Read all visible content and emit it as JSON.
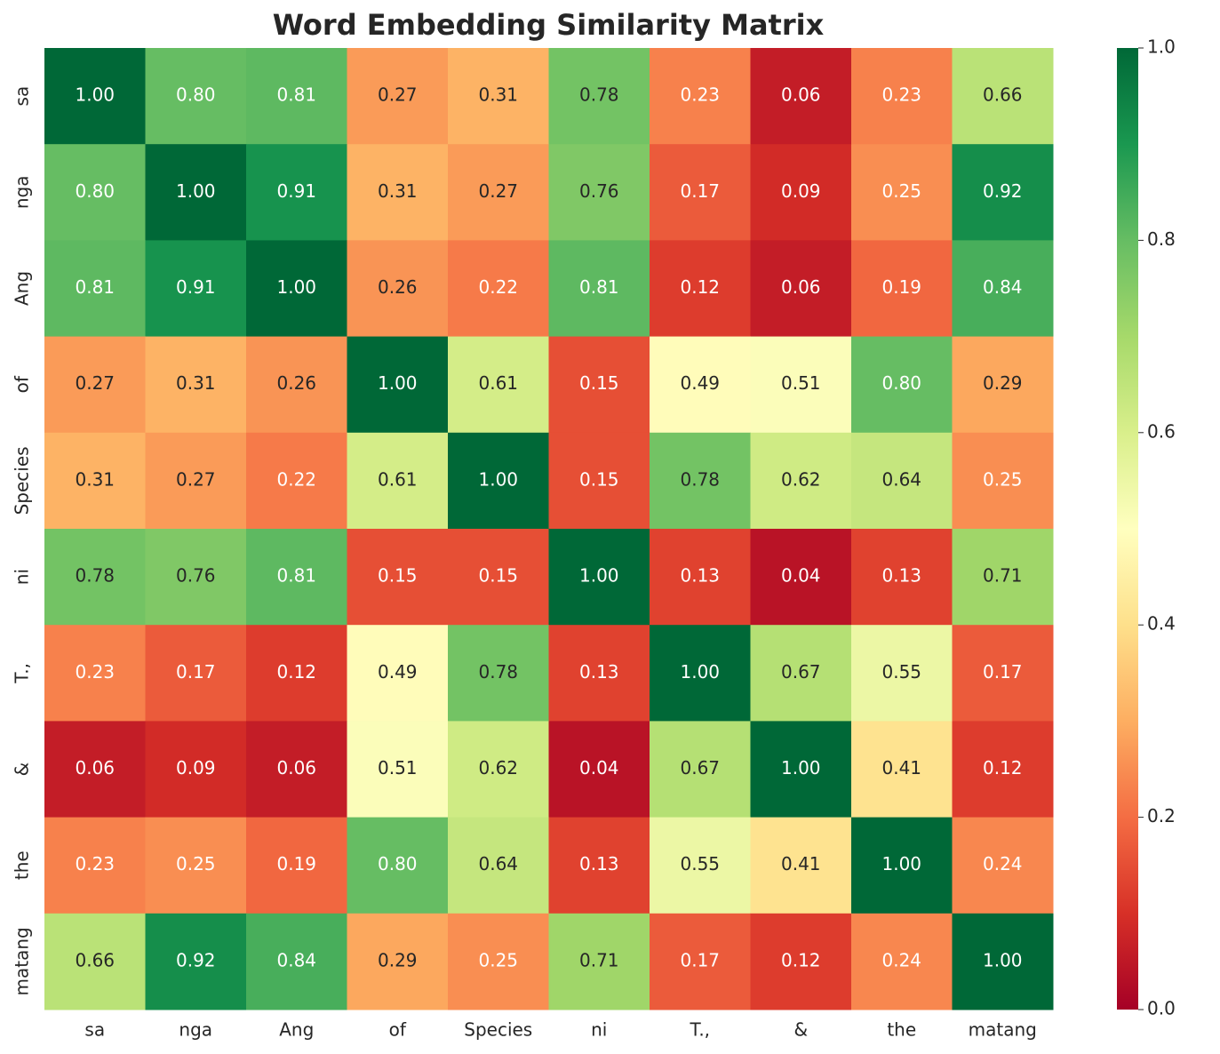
{
  "chart_data": {
    "type": "heatmap",
    "title": "Word Embedding Similarity Matrix",
    "x_categories": [
      "sa",
      "nga",
      "Ang",
      "of",
      "Species",
      "ni",
      "T.,",
      "&",
      "the",
      "matang"
    ],
    "y_categories": [
      "sa",
      "nga",
      "Ang",
      "of",
      "Species",
      "ni",
      "T.,",
      "&",
      "the",
      "matang"
    ],
    "values": [
      [
        1.0,
        0.8,
        0.81,
        0.27,
        0.31,
        0.78,
        0.23,
        0.06,
        0.23,
        0.66
      ],
      [
        0.8,
        1.0,
        0.91,
        0.31,
        0.27,
        0.76,
        0.17,
        0.09,
        0.25,
        0.92
      ],
      [
        0.81,
        0.91,
        1.0,
        0.26,
        0.22,
        0.81,
        0.12,
        0.06,
        0.19,
        0.84
      ],
      [
        0.27,
        0.31,
        0.26,
        1.0,
        0.61,
        0.15,
        0.49,
        0.51,
        0.8,
        0.29
      ],
      [
        0.31,
        0.27,
        0.22,
        0.61,
        1.0,
        0.15,
        0.78,
        0.62,
        0.64,
        0.25
      ],
      [
        0.78,
        0.76,
        0.81,
        0.15,
        0.15,
        1.0,
        0.13,
        0.04,
        0.13,
        0.71
      ],
      [
        0.23,
        0.17,
        0.12,
        0.49,
        0.78,
        0.13,
        1.0,
        0.67,
        0.55,
        0.17
      ],
      [
        0.06,
        0.09,
        0.06,
        0.51,
        0.62,
        0.04,
        0.67,
        1.0,
        0.41,
        0.12
      ],
      [
        0.23,
        0.25,
        0.19,
        0.8,
        0.64,
        0.13,
        0.55,
        0.41,
        1.0,
        0.24
      ],
      [
        0.66,
        0.92,
        0.84,
        0.29,
        0.25,
        0.71,
        0.17,
        0.12,
        0.24,
        1.0
      ]
    ],
    "value_labels": [
      [
        "1.00",
        "0.80",
        "0.81",
        "0.27",
        "0.31",
        "0.78",
        "0.23",
        "0.06",
        "0.23",
        "0.66"
      ],
      [
        "0.80",
        "1.00",
        "0.91",
        "0.31",
        "0.27",
        "0.76",
        "0.17",
        "0.09",
        "0.25",
        "0.92"
      ],
      [
        "0.81",
        "0.91",
        "1.00",
        "0.26",
        "0.22",
        "0.81",
        "0.12",
        "0.06",
        "0.19",
        "0.84"
      ],
      [
        "0.27",
        "0.31",
        "0.26",
        "1.00",
        "0.61",
        "0.15",
        "0.49",
        "0.51",
        "0.80",
        "0.29"
      ],
      [
        "0.31",
        "0.27",
        "0.22",
        "0.61",
        "1.00",
        "0.15",
        "0.78",
        "0.62",
        "0.64",
        "0.25"
      ],
      [
        "0.78",
        "0.76",
        "0.81",
        "0.15",
        "0.15",
        "1.00",
        "0.13",
        "0.04",
        "0.13",
        "0.71"
      ],
      [
        "0.23",
        "0.17",
        "0.12",
        "0.49",
        "0.78",
        "0.13",
        "1.00",
        "0.67",
        "0.55",
        "0.17"
      ],
      [
        "0.06",
        "0.09",
        "0.06",
        "0.51",
        "0.62",
        "0.04",
        "0.67",
        "1.00",
        "0.41",
        "0.12"
      ],
      [
        "0.23",
        "0.25",
        "0.19",
        "0.80",
        "0.64",
        "0.13",
        "0.55",
        "0.41",
        "1.00",
        "0.24"
      ],
      [
        "0.66",
        "0.92",
        "0.84",
        "0.29",
        "0.25",
        "0.71",
        "0.17",
        "0.12",
        "0.24",
        "1.00"
      ]
    ],
    "zlim": [
      0,
      1
    ],
    "zticks": [
      {
        "value": 0,
        "label": "0.0"
      },
      {
        "value": 0.2,
        "label": "0.2"
      },
      {
        "value": 0.4,
        "label": "0.4"
      },
      {
        "value": 0.6,
        "label": "0.6"
      },
      {
        "value": 0.8,
        "label": "0.8"
      },
      {
        "value": 1,
        "label": "1.0"
      }
    ],
    "colorscale": [
      "#a50026",
      "#d73027",
      "#f46d43",
      "#fdae61",
      "#fee08b",
      "#ffffbf",
      "#d9ef8b",
      "#a6d96a",
      "#66bd63",
      "#1a9850",
      "#006837"
    ]
  }
}
